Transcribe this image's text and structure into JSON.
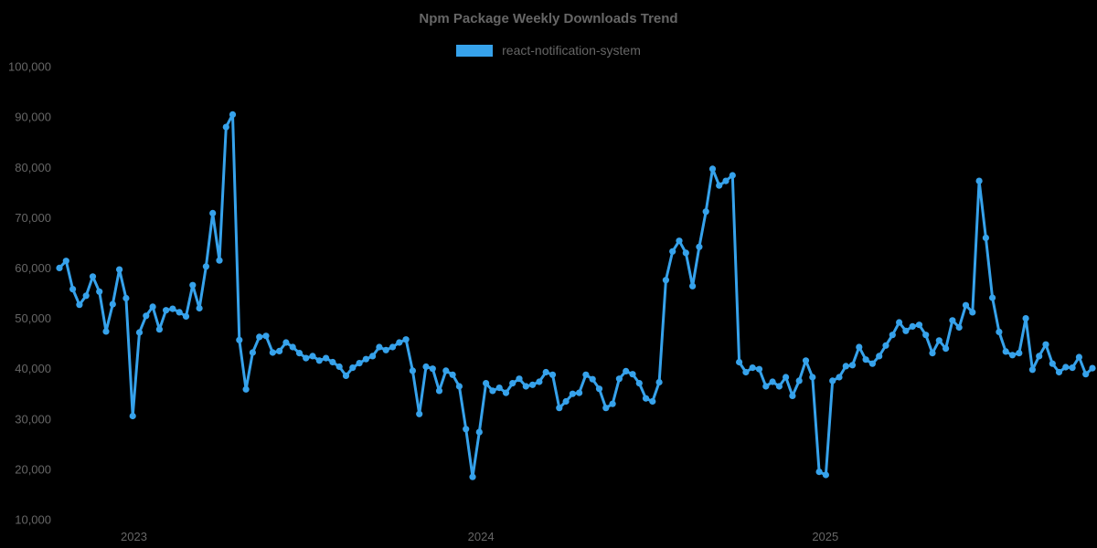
{
  "chart_data": {
    "type": "line",
    "title": "Npm Package Weekly Downloads Trend",
    "legend_position": "top",
    "grid": false,
    "colors": {
      "background": "#000000",
      "text": "#666666"
    },
    "x": {
      "unit": "week",
      "tick_labels": [
        "2023",
        "2024",
        "2025"
      ],
      "tick_positions": [
        11.18,
        63.25,
        114.92
      ]
    },
    "y": {
      "min": 10000,
      "max": 100000,
      "step": 10000,
      "tick_labels": [
        "10,000",
        "20,000",
        "30,000",
        "40,000",
        "50,000",
        "60,000",
        "70,000",
        "80,000",
        "90,000",
        "100,000"
      ]
    },
    "series": [
      {
        "name": "react-notification-system",
        "color": "#36A2EB",
        "values": [
          60000,
          61400,
          55800,
          52700,
          54500,
          58300,
          55300,
          47400,
          52800,
          59700,
          54000,
          30600,
          47200,
          50500,
          52300,
          47800,
          51600,
          51900,
          51200,
          50400,
          56600,
          52000,
          60300,
          70900,
          61500,
          88000,
          90500,
          45700,
          35900,
          43200,
          46300,
          46500,
          43200,
          43500,
          45200,
          44300,
          43100,
          42100,
          42500,
          41600,
          42100,
          41300,
          40400,
          38600,
          40200,
          41100,
          41900,
          42500,
          44300,
          43700,
          44300,
          45200,
          45800,
          39600,
          31000,
          40400,
          40000,
          35600,
          39600,
          38800,
          36500,
          28000,
          18500,
          27400,
          37100,
          35600,
          36200,
          35200,
          37100,
          38000,
          36500,
          36800,
          37400,
          39300,
          38800,
          32200,
          33500,
          35000,
          35200,
          38800,
          37900,
          36000,
          32200,
          33000,
          38000,
          39500,
          38900,
          37100,
          34100,
          33500,
          37300,
          57600,
          63300,
          65400,
          63000,
          56400,
          64200,
          71200,
          79700,
          76400,
          77300,
          78400,
          41300,
          39300,
          40200,
          39900,
          36500,
          37400,
          36500,
          38300,
          34600,
          37600,
          41600,
          38300,
          19500,
          18900,
          37600,
          38300,
          40500,
          40700,
          44300,
          41800,
          41000,
          42500,
          44600,
          46700,
          49200,
          47500,
          48400,
          48700,
          46700,
          43100,
          45600,
          44000,
          49600,
          48200,
          52600,
          51200,
          77300,
          66000,
          54100,
          47300,
          43400,
          42700,
          43100,
          50000,
          39800,
          42500,
          44800,
          41000,
          39300,
          40300,
          40200,
          42300,
          38900,
          40100
        ]
      }
    ]
  }
}
